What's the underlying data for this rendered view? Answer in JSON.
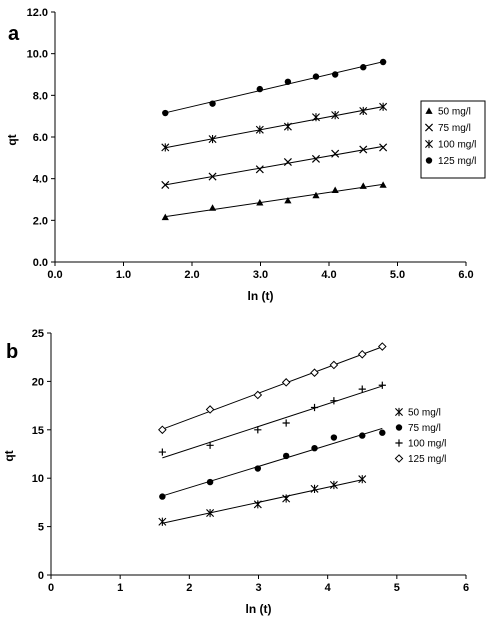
{
  "chart_data": [
    {
      "type": "scatter",
      "panel_label": "a",
      "title": "",
      "xlabel": "ln (t)",
      "ylabel": "qt",
      "xlim": [
        0.0,
        6.0
      ],
      "ylim": [
        0.0,
        12.0
      ],
      "x_ticks": [
        0.0,
        1.0,
        2.0,
        3.0,
        4.0,
        5.0,
        6.0
      ],
      "y_ticks": [
        0.0,
        2.0,
        4.0,
        6.0,
        8.0,
        10.0,
        12.0
      ],
      "tick_format": "fixed1",
      "grid": false,
      "legend_position": "right",
      "legend_border": true,
      "trendlines": true,
      "x": [
        1.61,
        2.3,
        2.99,
        3.4,
        3.81,
        4.09,
        4.5,
        4.79
      ],
      "series": [
        {
          "name": "50 mg/l",
          "marker": "triangle",
          "values": [
            2.15,
            2.6,
            2.85,
            2.95,
            3.2,
            3.45,
            3.65,
            3.7
          ]
        },
        {
          "name": "75 mg/l",
          "marker": "x",
          "values": [
            3.7,
            4.1,
            4.45,
            4.8,
            4.95,
            5.2,
            5.4,
            5.5
          ]
        },
        {
          "name": "100 mg/l",
          "marker": "star",
          "values": [
            5.5,
            5.9,
            6.35,
            6.5,
            6.95,
            7.05,
            7.25,
            7.45
          ]
        },
        {
          "name": "125 mg/l",
          "marker": "circle",
          "values": [
            7.15,
            7.6,
            8.3,
            8.65,
            8.9,
            9.0,
            9.35,
            9.6
          ]
        }
      ]
    },
    {
      "type": "scatter",
      "panel_label": "b",
      "title": "",
      "xlabel": "ln (t)",
      "ylabel": "qt",
      "xlim": [
        0,
        6
      ],
      "ylim": [
        0,
        25
      ],
      "x_ticks": [
        0,
        1,
        2,
        3,
        4,
        5,
        6
      ],
      "y_ticks": [
        0,
        5,
        10,
        15,
        20,
        25
      ],
      "tick_format": "int",
      "grid": false,
      "legend_position": "right",
      "legend_border": false,
      "trendlines": true,
      "x": [
        1.61,
        2.3,
        2.99,
        3.4,
        3.81,
        4.09,
        4.5,
        4.79
      ],
      "series": [
        {
          "name": "50 mg/l",
          "marker": "star",
          "values": [
            5.5,
            6.4,
            7.3,
            7.9,
            8.9,
            9.3,
            9.9,
            null
          ]
        },
        {
          "name": "75 mg/l",
          "marker": "circle",
          "values": [
            8.1,
            9.6,
            11.0,
            12.3,
            13.1,
            14.2,
            14.4,
            14.7
          ]
        },
        {
          "name": "100 mg/l",
          "marker": "plus",
          "values": [
            12.7,
            13.4,
            15.0,
            15.7,
            17.3,
            18.0,
            19.2,
            19.6
          ]
        },
        {
          "name": "125 mg/l",
          "marker": "diamond",
          "values": [
            15.0,
            17.1,
            18.6,
            19.9,
            20.9,
            21.7,
            22.8,
            23.6
          ]
        }
      ]
    }
  ]
}
